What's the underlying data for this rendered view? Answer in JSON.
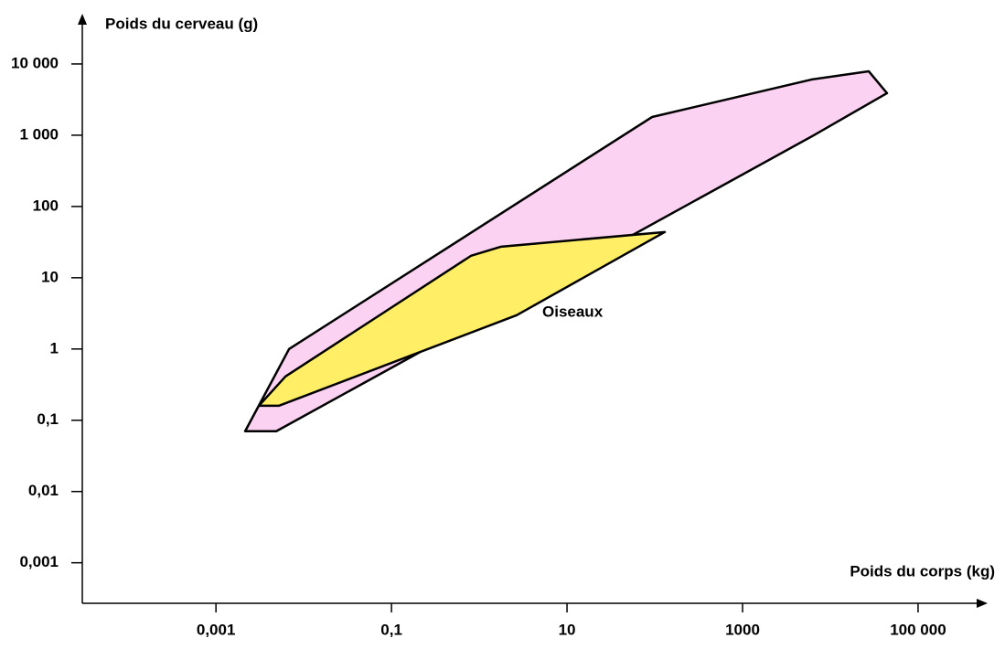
{
  "chart_data": {
    "type": "polygon",
    "ylabel": "Poids du cerveau (g)",
    "xlabel": "Poids du corps (kg)",
    "xlog": true,
    "ylog": true,
    "xlim": [
      3e-05,
      620000
    ],
    "ylim": [
      0.00027,
      50700
    ],
    "xticks": [
      {
        "value": 0.001,
        "label": "0,001"
      },
      {
        "value": 0.1,
        "label": "0,1"
      },
      10,
      1000,
      {
        "value": 100000,
        "label": "100 000"
      }
    ],
    "yticks": [
      {
        "value": 0.001,
        "label": "0,001"
      },
      {
        "value": 0.01,
        "label": "0,01"
      },
      {
        "value": 0.1,
        "label": "0,1"
      },
      1,
      10,
      100,
      {
        "value": 1000,
        "label": "1 000"
      },
      {
        "value": 10000,
        "label": "10 000"
      }
    ],
    "series": [
      {
        "color": "#fcd2f2",
        "x": [
          0.00215,
          0.00487,
          6494,
          44260,
          27380,
          6166,
          93.1,
          0.00681
        ],
        "y": [
          0.0702,
          0.0702,
          1000,
          3890,
          7890,
          6060,
          1800,
          1
        ]
      },
      {
        "name": "Oiseaux",
        "color": "#ffee66",
        "x": [
          0.00309,
          0.00524,
          2.67,
          130,
          1.78,
          0.805,
          0.0062
        ],
        "y": [
          0.16,
          0.16,
          2.98,
          43.8,
          27.3,
          20.3,
          0.412
        ]
      }
    ]
  }
}
